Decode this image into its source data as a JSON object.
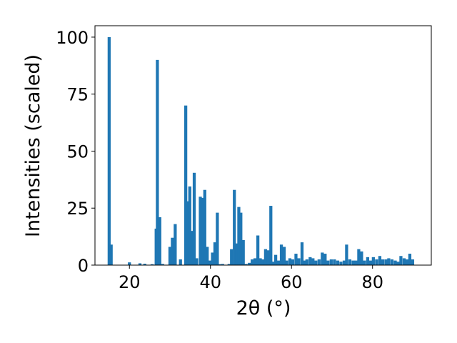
{
  "chart_data": {
    "type": "bar",
    "xlabel": "2θ (°)",
    "ylabel": "Intensities (scaled)",
    "xlim": [
      11.5,
      94.5
    ],
    "ylim": [
      0,
      105
    ],
    "x_ticks": [
      20,
      40,
      60,
      80
    ],
    "y_ticks": [
      0,
      25,
      50,
      75,
      100
    ],
    "grid": false,
    "bar_color": "#1f77b4",
    "bar_width": 0.75,
    "x": [
      15.0,
      15.5,
      20.0,
      22.6,
      23.8,
      25.6,
      26.6,
      26.9,
      27.5,
      28.2,
      30.0,
      30.6,
      31.3,
      32.6,
      33.9,
      34.4,
      34.9,
      35.4,
      36.0,
      36.6,
      37.5,
      38.0,
      38.6,
      39.2,
      39.8,
      40.5,
      41.1,
      41.7,
      42.3,
      43.0,
      44.6,
      45.2,
      45.9,
      46.5,
      47.0,
      47.5,
      48.1,
      48.8,
      49.6,
      50.3,
      51.0,
      51.7,
      52.3,
      52.9,
      53.6,
      54.3,
      54.9,
      55.4,
      56.1,
      56.8,
      57.5,
      58.2,
      58.8,
      59.6,
      60.3,
      61.1,
      61.8,
      62.6,
      63.2,
      63.8,
      64.6,
      65.3,
      66.0,
      66.8,
      67.6,
      68.3,
      69.0,
      69.8,
      70.6,
      71.4,
      72.2,
      73.0,
      73.6,
      74.4,
      75.2,
      75.9,
      76.6,
      77.3,
      78.0,
      78.8,
      79.5,
      80.2,
      81.0,
      81.8,
      82.5,
      83.3,
      84.0,
      84.8,
      85.6,
      86.3,
      87.0,
      87.8,
      88.5,
      89.2,
      89.9
    ],
    "values": [
      100,
      9,
      1.2,
      0.8,
      0.6,
      0.4,
      16,
      90,
      21,
      0.5,
      8,
      12,
      18,
      2.5,
      70,
      28,
      34.5,
      15,
      40.5,
      3,
      30,
      29.5,
      33,
      8,
      2,
      5.5,
      10,
      23,
      0.4,
      0.5,
      0.5,
      7,
      33,
      9.5,
      25.5,
      23,
      11,
      0.5,
      1,
      2.5,
      3,
      13,
      3,
      2.5,
      7,
      6.5,
      26,
      1.5,
      4.5,
      2,
      9,
      8,
      2,
      3,
      2.5,
      5,
      3,
      10,
      2,
      2.5,
      3.5,
      3,
      2,
      2.5,
      5.5,
      5,
      2,
      2.5,
      2.5,
      2,
      1.5,
      2,
      9,
      2.5,
      2,
      2,
      7,
      6,
      2,
      3.5,
      2,
      3.5,
      2.5,
      4,
      2.5,
      2.5,
      3,
      2.5,
      2,
      1.5,
      4,
      3,
      2.5,
      5,
      2.5
    ]
  }
}
